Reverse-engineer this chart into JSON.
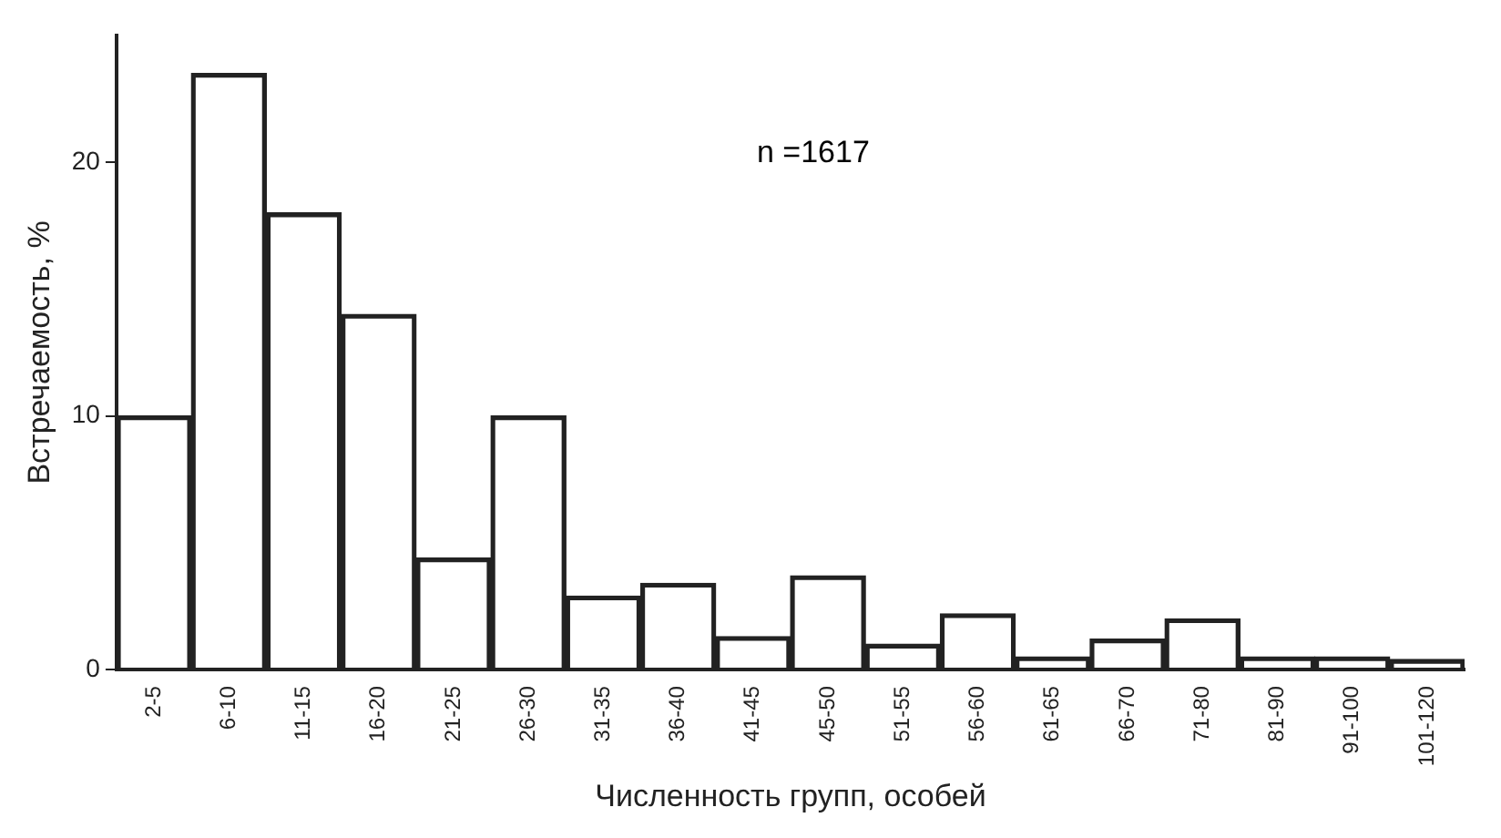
{
  "chart_data": {
    "type": "bar",
    "xlabel": "Численность групп, особей",
    "ylabel": "Встречаемость, %",
    "categories": [
      "2-5",
      "6-10",
      "11-15",
      "16-20",
      "21-25",
      "26-30",
      "31-35",
      "36-40",
      "41-45",
      "45-50",
      "51-55",
      "56-60",
      "61-65",
      "66-70",
      "71-80",
      "81-90",
      "91-100",
      "101-120"
    ],
    "values": [
      10,
      23.5,
      18,
      14,
      4.4,
      10,
      2.9,
      3.4,
      1.3,
      3.7,
      1.0,
      2.2,
      0.5,
      1.2,
      2.0,
      0.5,
      0.5,
      0.4
    ],
    "color": "#222222",
    "ylim": [
      0,
      25
    ],
    "yticks": [
      0,
      10,
      20
    ],
    "grid": false,
    "legend": false,
    "annotations": [
      "n =1617"
    ]
  }
}
